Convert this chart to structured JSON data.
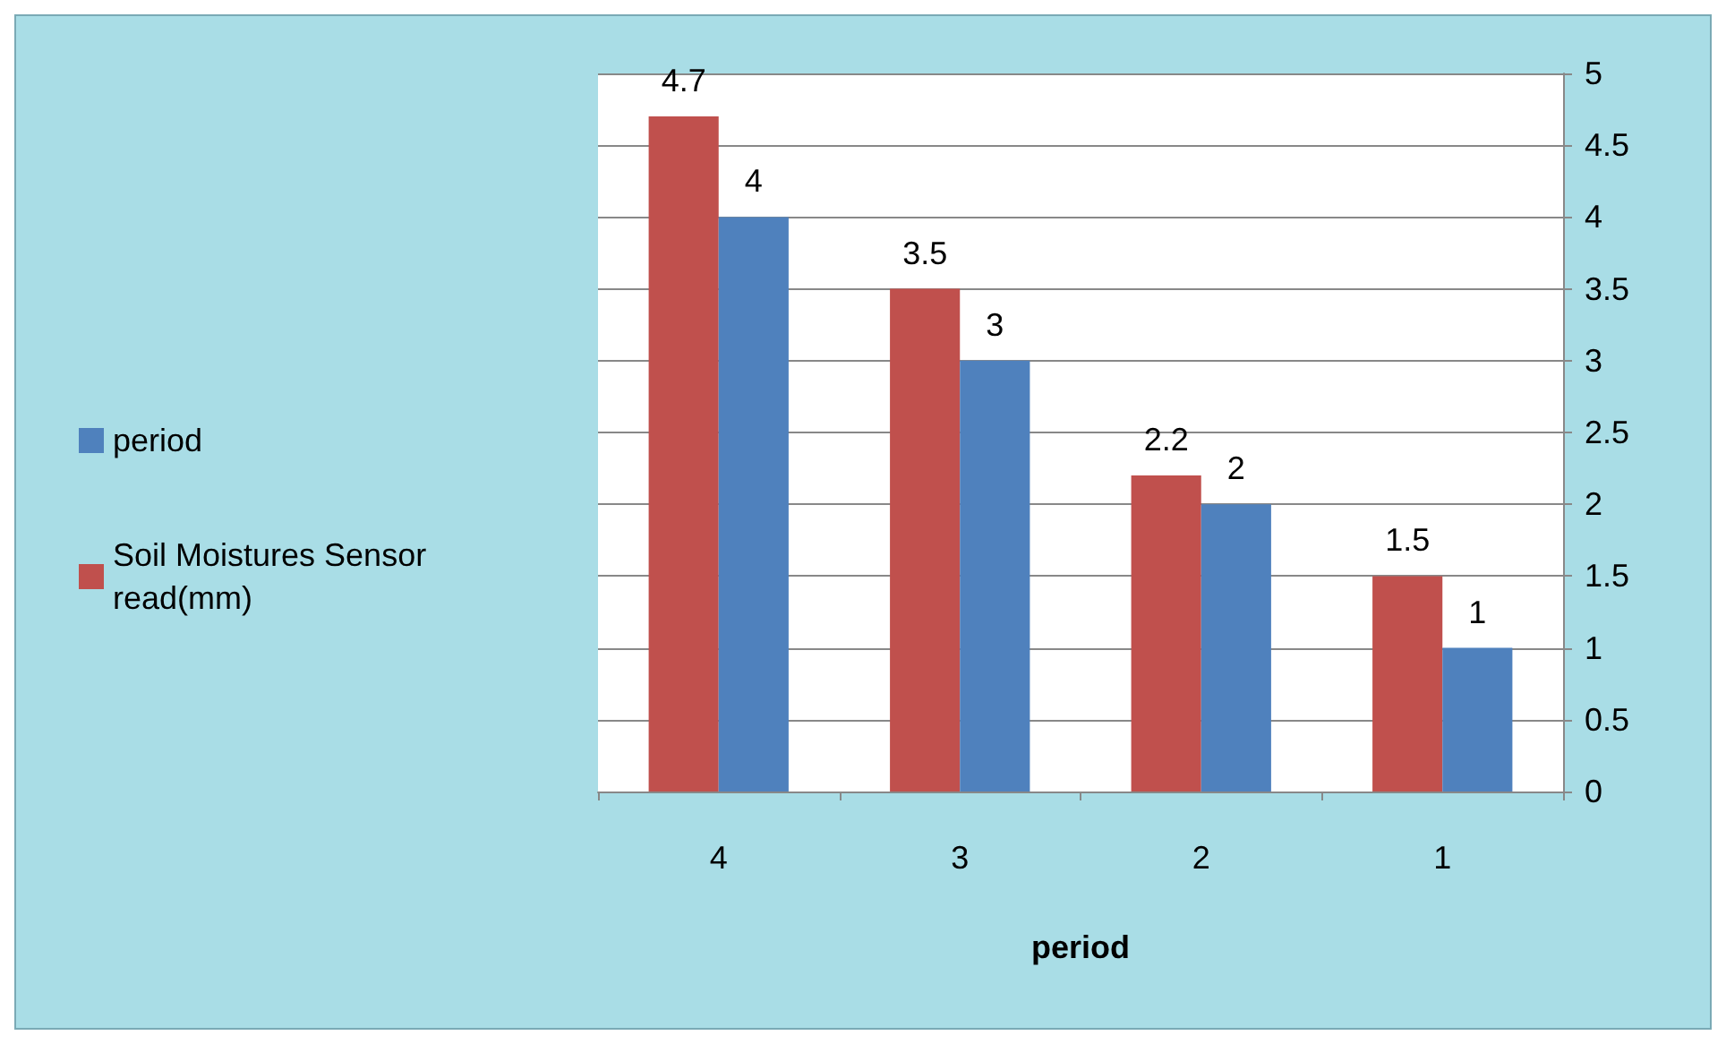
{
  "chart_data": {
    "type": "bar",
    "xlabel": "period",
    "categories": [
      "4",
      "3",
      "2",
      "1"
    ],
    "series": [
      {
        "name": "Soil Moistures Sensor read(mm)",
        "color": "#c0504d",
        "values": [
          4.7,
          3.5,
          2.2,
          1.5
        ]
      },
      {
        "name": "period",
        "color": "#4f81bd",
        "values": [
          4,
          3,
          2,
          1
        ]
      }
    ],
    "ylim": [
      0,
      5
    ],
    "yticks": [
      0,
      0.5,
      1,
      1.5,
      2,
      2.5,
      3,
      3.5,
      4,
      4.5,
      5
    ],
    "grid": "y",
    "legend": "left",
    "data_labels": true
  }
}
